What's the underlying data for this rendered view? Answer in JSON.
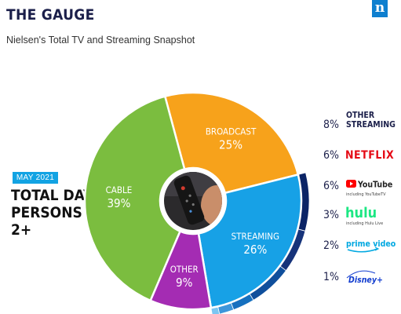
{
  "header": {
    "title": "THE GAUGE",
    "subtitle": "Nielsen's Total TV and Streaming Snapshot",
    "logo_glyph": "n"
  },
  "metric": {
    "date": "MAY 2021",
    "line1": "TOTAL DAY",
    "line2": "PERSONS 2+"
  },
  "colors": {
    "broadcast": "#f7a21b",
    "streaming": "#17a1e6",
    "other": "#a42cb3",
    "cable": "#7bbd3f",
    "netflix": "#e50914",
    "youtube": "#ff0000",
    "hulu": "#1ce783",
    "prime": "#00a8e1",
    "disney": "#113ccf",
    "navy": "#1b1f4a"
  },
  "chart_data": {
    "type": "pie",
    "segments": [
      {
        "name": "BROADCAST",
        "value": 25,
        "label": "25%"
      },
      {
        "name": "STREAMING",
        "value": 26,
        "label": "26%"
      },
      {
        "name": "OTHER",
        "value": 9,
        "label": "9%"
      },
      {
        "name": "CABLE",
        "value": 39,
        "label": "39%"
      }
    ],
    "streaming_breakdown": [
      {
        "pct": "8%",
        "value": 8,
        "name": "OTHER STREAMING",
        "name_line1": "OTHER",
        "name_line2": "STREAMING",
        "color": "#0b2466"
      },
      {
        "pct": "6%",
        "value": 6,
        "name": "NETFLIX",
        "color": "#16337a"
      },
      {
        "pct": "6%",
        "value": 6,
        "name": "YouTube",
        "sub": "including YouTubeTV",
        "color": "#0f4f9c"
      },
      {
        "pct": "3%",
        "value": 3,
        "name": "hulu",
        "sub": "including Hulu Live",
        "color": "#1670bf"
      },
      {
        "pct": "2%",
        "value": 2,
        "name": "prime video",
        "color": "#3d96da"
      },
      {
        "pct": "1%",
        "value": 1,
        "name": "Disney+",
        "color": "#7cc6f2"
      }
    ]
  }
}
